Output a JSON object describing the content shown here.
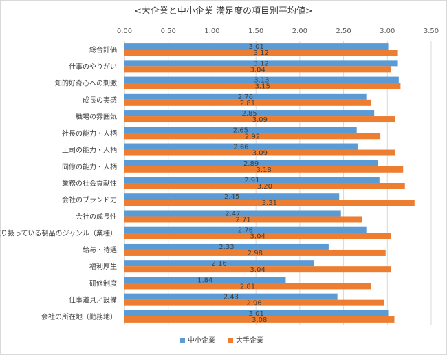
{
  "chart_data": {
    "type": "bar",
    "orientation": "horizontal",
    "title": "<大企業と中小企業 満足度の項目別平均値>",
    "xlim": [
      0,
      3.5
    ],
    "x_ticks": [
      "0.00",
      "0.50",
      "1.00",
      "1.50",
      "2.00",
      "2.50",
      "3.00",
      "3.50"
    ],
    "grid": "vertical",
    "legend_position": "bottom",
    "categories": [
      "総合評価",
      "仕事のやりがい",
      "知的好奇心への刺激",
      "成長の実感",
      "職場の雰囲気",
      "社長の能力・人柄",
      "上司の能力・人柄",
      "同僚の能力・人柄",
      "業務の社会貢献性",
      "会社のブランド力",
      "会社の成長性",
      "取り扱っている製品のジャンル（業種）",
      "給与・待遇",
      "福利厚生",
      "研修制度",
      "仕事道具／設備",
      "会社の所在地（勤務地）"
    ],
    "series": [
      {
        "name": "中小企業",
        "color": "#5b9bd5",
        "values": [
          3.01,
          3.12,
          3.13,
          2.76,
          2.85,
          2.65,
          2.66,
          2.89,
          2.91,
          2.45,
          2.47,
          2.76,
          2.33,
          2.16,
          1.84,
          2.43,
          3.01
        ],
        "labels": [
          "3.01",
          "3.12",
          "3.13",
          "2.76",
          "2.85",
          "2.65",
          "2.66",
          "2.89",
          "2.91",
          "2.45",
          "2.47",
          "2.76",
          "2.33",
          "2.16",
          "1.84",
          "2.43",
          "3.01"
        ]
      },
      {
        "name": "大手企業",
        "color": "#ed7d31",
        "values": [
          3.12,
          3.04,
          3.15,
          2.81,
          3.09,
          2.92,
          3.09,
          3.18,
          3.2,
          3.31,
          2.71,
          3.04,
          2.98,
          3.04,
          2.81,
          2.96,
          3.08
        ],
        "labels": [
          "3.12",
          "3.04",
          "3.15",
          "2.81",
          "3.09",
          "2.92",
          "3.09",
          "3.18",
          "3.20",
          "3.31",
          "2.71",
          "3.04",
          "2.98",
          "3.04",
          "2.81",
          "2.96",
          "3.08"
        ]
      }
    ]
  }
}
